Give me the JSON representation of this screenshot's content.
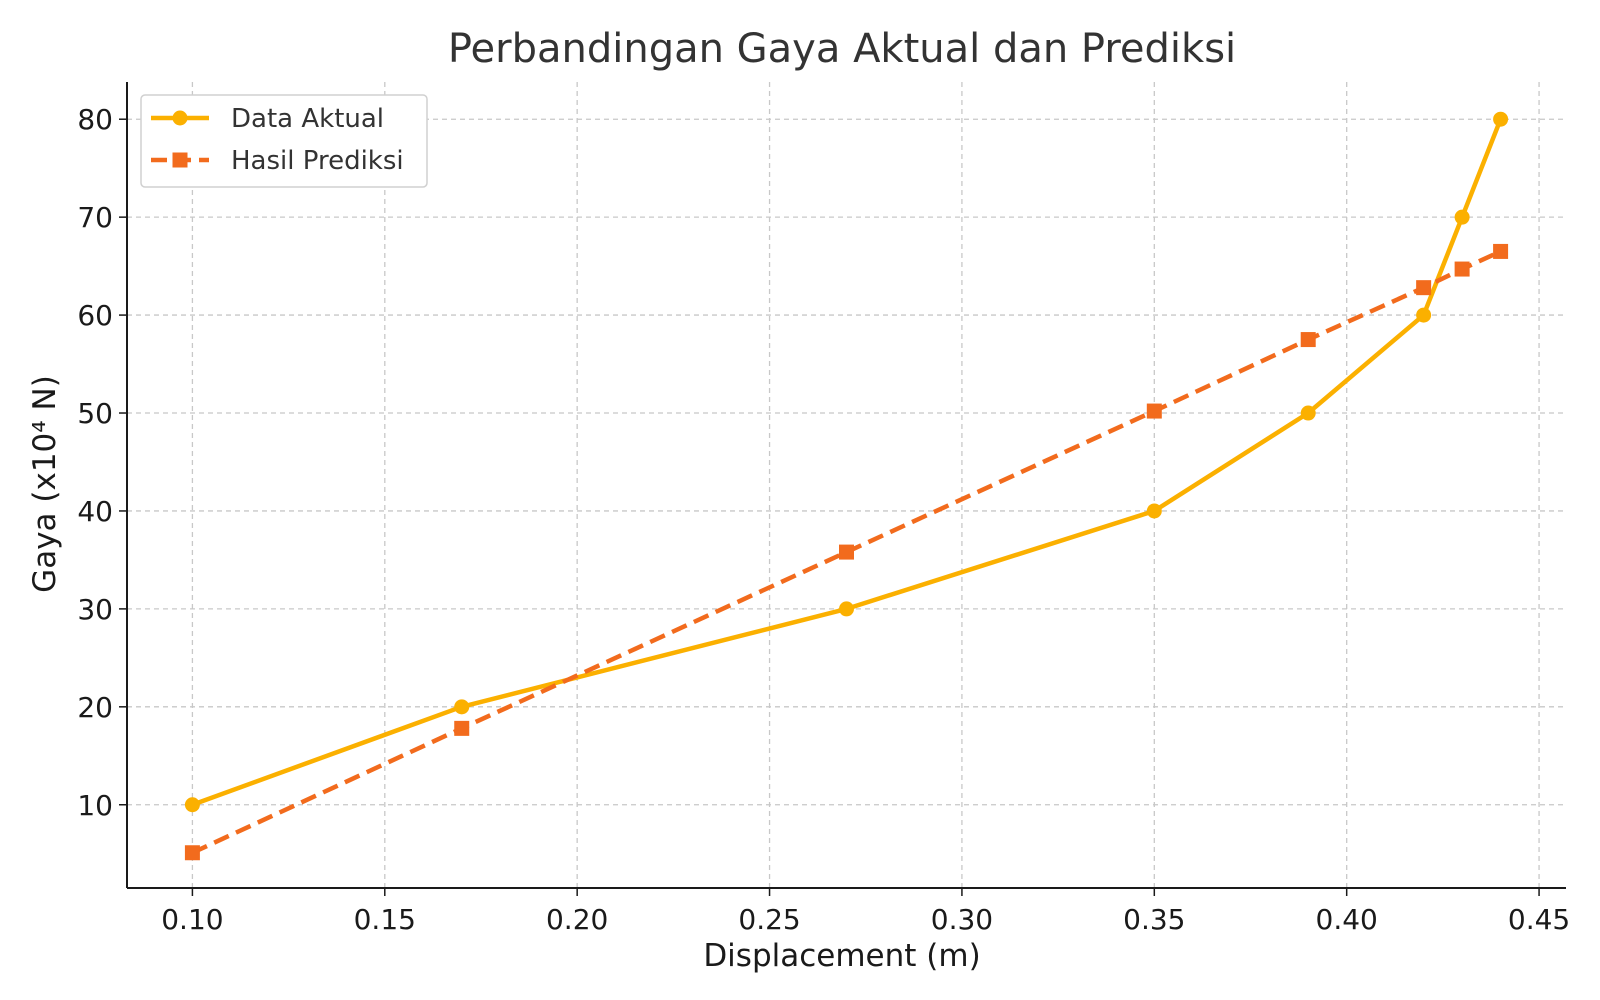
{
  "chart_data": {
    "type": "line",
    "title": "Perbandingan Gaya Aktual dan Prediksi",
    "xlabel": "Displacement (m)",
    "ylabel": "Gaya (x10⁴ N)",
    "x_ticks": [
      "0.10",
      "0.15",
      "0.20",
      "0.25",
      "0.30",
      "0.35",
      "0.40",
      "0.45"
    ],
    "y_ticks": [
      "10",
      "20",
      "30",
      "40",
      "50",
      "60",
      "70",
      "80"
    ],
    "xlim": [
      0.083,
      0.457
    ],
    "ylim": [
      1.5,
      83.8
    ],
    "grid": true,
    "legend_position": "top-left",
    "series": [
      {
        "name": "Data Aktual",
        "color": "#fbb000",
        "line_style": "solid",
        "marker": "circle",
        "x": [
          0.1,
          0.17,
          0.27,
          0.35,
          0.39,
          0.42,
          0.43,
          0.44
        ],
        "y": [
          10,
          20,
          30,
          40,
          50,
          60,
          70,
          80
        ]
      },
      {
        "name": "Hasil Prediksi",
        "color": "#f26b1d",
        "line_style": "dashed",
        "marker": "square",
        "x": [
          0.1,
          0.17,
          0.27,
          0.35,
          0.39,
          0.42,
          0.43,
          0.44
        ],
        "y": [
          5.1,
          17.8,
          35.8,
          50.2,
          57.5,
          62.8,
          64.7,
          66.5
        ]
      }
    ]
  }
}
